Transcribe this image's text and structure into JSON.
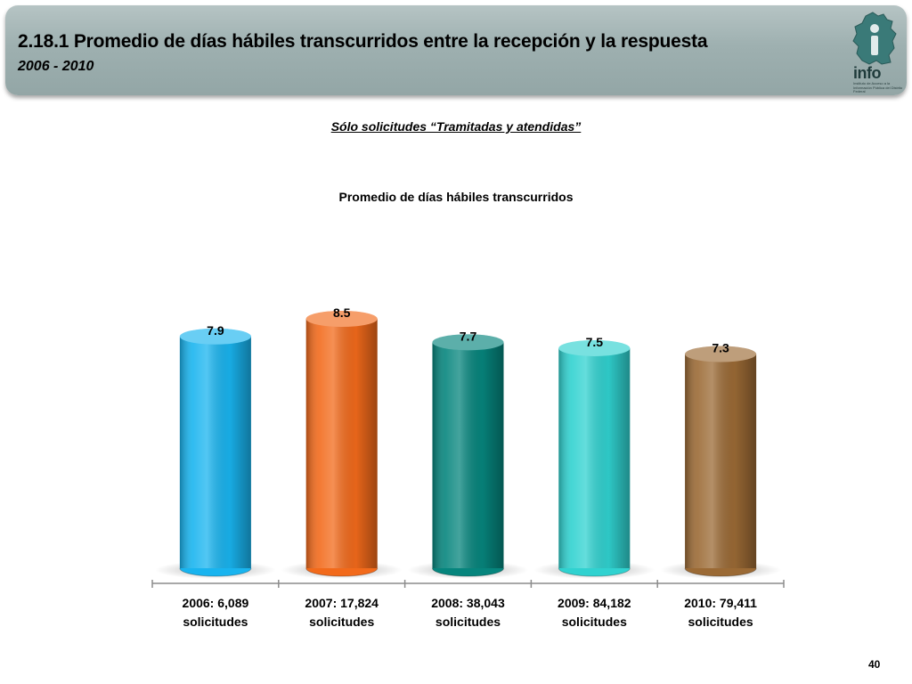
{
  "header": {
    "title": "2.18.1 Promedio de días hábiles transcurridos entre la recepción y la respuesta",
    "subtitle": "2006 - 2010",
    "logo_text": "info",
    "logo_caption": "Instituto de Acceso a la Información Pública del Distrito Federal"
  },
  "note": "Sólo solicitudes “Tramitadas y atendidas”",
  "page_number": "40",
  "colors": {
    "bars": [
      "#19b4ef",
      "#f26a1b",
      "#06857d",
      "#30d2d0",
      "#9b6a35"
    ],
    "header_bg": "#a3b5b5"
  },
  "chart_data": {
    "type": "bar",
    "title": "Promedio de días hábiles transcurridos",
    "categories": [
      [
        "2006: 6,089",
        "solicitudes"
      ],
      [
        "2007: 17,824",
        "solicitudes"
      ],
      [
        "2008: 38,043",
        "solicitudes"
      ],
      [
        "2009: 84,182",
        "solicitudes"
      ],
      [
        "2010: 79,411",
        "solicitudes"
      ]
    ],
    "values": [
      7.9,
      8.5,
      7.7,
      7.5,
      7.3
    ],
    "data_labels": [
      "7.9",
      "8.5",
      "7.7",
      "7.5",
      "7.3"
    ],
    "ylim": [
      0,
      8.5
    ],
    "grid": false,
    "legend": "none",
    "bar_style": "3d-cylinder"
  }
}
